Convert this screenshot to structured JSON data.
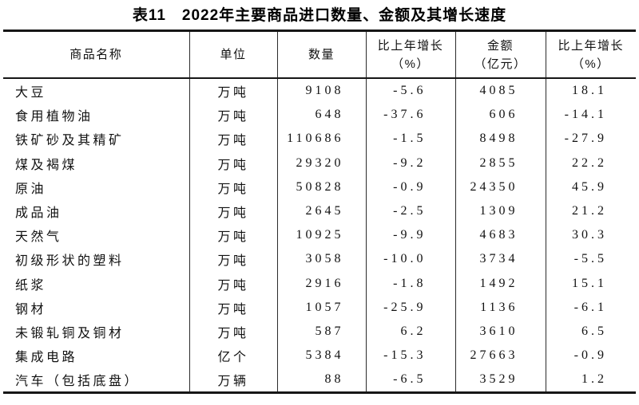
{
  "title": "表11　2022年主要商品进口数量、金额及其增长速度",
  "table": {
    "column_keys": [
      "commodity",
      "unit",
      "quantity",
      "quantity_growth",
      "amount",
      "amount_growth"
    ],
    "headers": [
      {
        "line1": "商品名称",
        "line2": ""
      },
      {
        "line1": "单位",
        "line2": ""
      },
      {
        "line1": "数量",
        "line2": ""
      },
      {
        "line1": "比上年增长",
        "line2": "（%）"
      },
      {
        "line1": "金额",
        "line2": "（亿元）"
      },
      {
        "line1": "比上年增长",
        "line2": "（%）"
      }
    ],
    "rows": [
      [
        "大豆",
        "万吨",
        "9108",
        "-5.6",
        "4085",
        "18.1"
      ],
      [
        "食用植物油",
        "万吨",
        "648",
        "-37.6",
        "606",
        "-14.1"
      ],
      [
        "铁矿砂及其精矿",
        "万吨",
        "110686",
        "-1.5",
        "8498",
        "-27.9"
      ],
      [
        "煤及褐煤",
        "万吨",
        "29320",
        "-9.2",
        "2855",
        "22.2"
      ],
      [
        "原油",
        "万吨",
        "50828",
        "-0.9",
        "24350",
        "45.9"
      ],
      [
        "成品油",
        "万吨",
        "2645",
        "-2.5",
        "1309",
        "21.2"
      ],
      [
        "天然气",
        "万吨",
        "10925",
        "-9.9",
        "4683",
        "30.3"
      ],
      [
        "初级形状的塑料",
        "万吨",
        "3058",
        "-10.0",
        "3734",
        "-5.5"
      ],
      [
        "纸浆",
        "万吨",
        "2916",
        "-1.8",
        "1492",
        "15.1"
      ],
      [
        "钢材",
        "万吨",
        "1057",
        "-25.9",
        "1136",
        "-6.1"
      ],
      [
        "未锻轧铜及铜材",
        "万吨",
        "587",
        "6.2",
        "3610",
        "6.5"
      ],
      [
        "集成电路",
        "亿个",
        "5384",
        "-15.3",
        "27663",
        "-0.9"
      ],
      [
        "汽车（包括底盘）",
        "万辆",
        "88",
        "-6.5",
        "3529",
        "1.2"
      ]
    ]
  },
  "colors": {
    "text": "#111111",
    "border": "#161616",
    "background": "#ffffff"
  }
}
